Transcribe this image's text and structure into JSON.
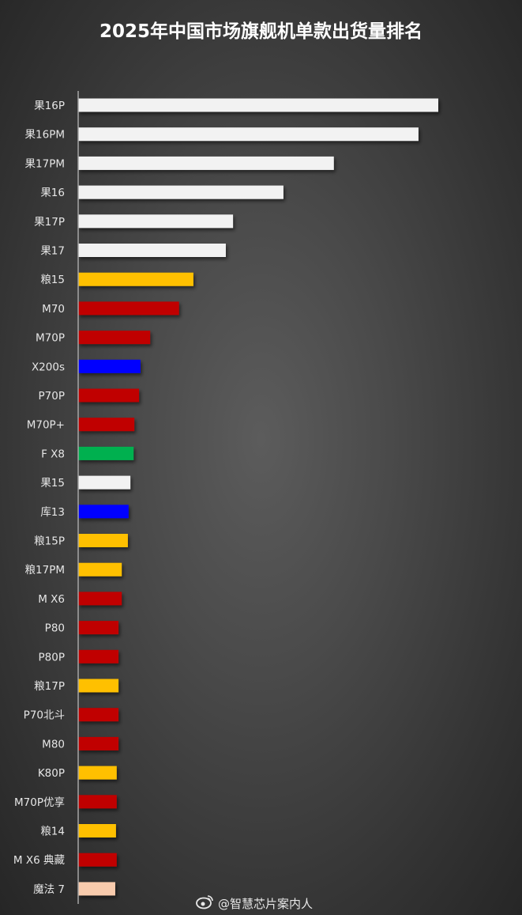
{
  "chart_data": {
    "type": "bar",
    "orientation": "horizontal",
    "title": "2025年中国市场旗舰机单款出货量排名",
    "categories": [
      "果16P",
      "果16PM",
      "果17PM",
      "果16",
      "果17P",
      "果17",
      "粮15",
      "M70",
      "M70P",
      "X200s",
      "P70P",
      "M70P+",
      "F X8",
      "果15",
      "库13",
      "粮15P",
      "粮17PM",
      "M X6",
      "P80",
      "P80P",
      "粮17P",
      "P70北斗",
      "M80",
      "K80P",
      "M70P优享",
      "粮14",
      "M X6 典藏",
      "魔法 7"
    ],
    "values": [
      100,
      94.5,
      71,
      57,
      43,
      41,
      32,
      28,
      20,
      17.3,
      16.9,
      15.6,
      15.4,
      14.5,
      14,
      13.8,
      12.1,
      12.1,
      11.2,
      11.2,
      11.2,
      11.2,
      11.2,
      10.7,
      10.7,
      10.5,
      10.7,
      10.3
    ],
    "colors": [
      "#f2f2f2",
      "#f2f2f2",
      "#f2f2f2",
      "#f2f2f2",
      "#f2f2f2",
      "#f2f2f2",
      "#ffc000",
      "#c00000",
      "#c00000",
      "#0000ff",
      "#c00000",
      "#c00000",
      "#00b050",
      "#f2f2f2",
      "#0000ff",
      "#ffc000",
      "#ffc000",
      "#c00000",
      "#c00000",
      "#c00000",
      "#ffc000",
      "#c00000",
      "#c00000",
      "#ffc000",
      "#c00000",
      "#ffc000",
      "#c00000",
      "#f8cbad"
    ],
    "grid": false,
    "axis_ticks": false
  },
  "watermark": {
    "text": "@智慧芯片案内人",
    "icon": "weibo-icon"
  }
}
